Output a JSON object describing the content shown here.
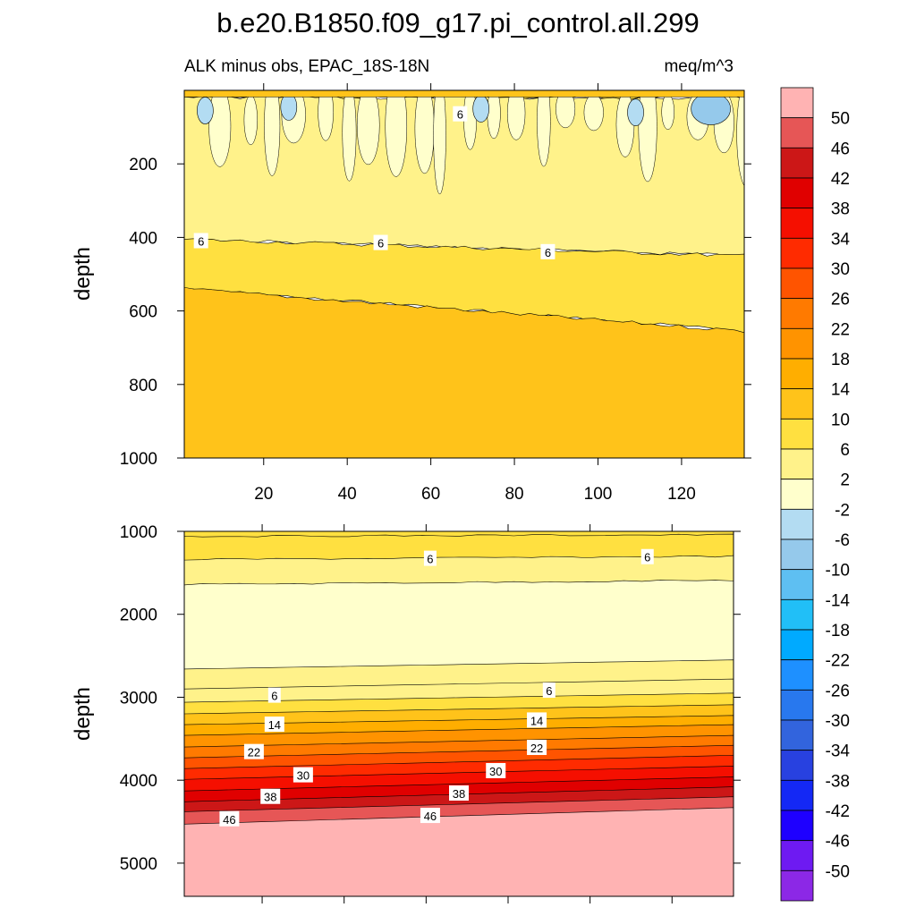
{
  "title": "b.e20.B1850.f09_g17.pi_control.all.299",
  "subtitle_left": "ALK minus obs, EPAC_18S-18N",
  "subtitle_right": "meq/m^3",
  "colorbar": {
    "boundaries": [
      -50,
      -46,
      -42,
      -38,
      -34,
      -30,
      -26,
      -22,
      -18,
      -14,
      -10,
      -6,
      -2,
      2,
      6,
      10,
      14,
      18,
      22,
      26,
      30,
      34,
      38,
      42,
      46,
      50
    ],
    "labels": [
      "50",
      "46",
      "42",
      "38",
      "34",
      "30",
      "26",
      "22",
      "18",
      "14",
      "10",
      "6",
      "2",
      "-2",
      "-6",
      "-10",
      "-14",
      "-18",
      "-22",
      "-26",
      "-30",
      "-34",
      "-38",
      "-42",
      "-46",
      "-50"
    ],
    "colors_top_to_bottom": [
      "#ffb3b3",
      "#e65656",
      "#cc1717",
      "#e00000",
      "#f50f00",
      "#ff2b00",
      "#ff5400",
      "#ff7a00",
      "#ff9300",
      "#ffae00",
      "#ffc31a",
      "#ffe040",
      "#fff28a",
      "#ffffcc",
      "#b3dcf2",
      "#95c9eb",
      "#5ebff2",
      "#21bff7",
      "#00aaff",
      "#1e90ff",
      "#2878ee",
      "#3264dd",
      "#2841e0",
      "#1428f5",
      "#1e00ff",
      "#6e1af2",
      "#8c28e6"
    ]
  },
  "chart_data": [
    {
      "type": "heatmap",
      "panel": "upper",
      "xlabel": "",
      "ylabel": "depth",
      "xlim": [
        1,
        135
      ],
      "ylim": [
        1000,
        0
      ],
      "x_ticks": [
        20,
        40,
        60,
        80,
        100,
        120
      ],
      "x_tick_labels": [
        "20",
        "40",
        "60",
        "80",
        "100",
        "120"
      ],
      "y_ticks": [
        200,
        400,
        600,
        800,
        1000
      ],
      "y_tick_labels": [
        "200",
        "400",
        "600",
        "800",
        "1000"
      ],
      "bands": [
        {
          "value_range": [
            6,
            10
          ],
          "top_depth": 0,
          "bottom_depth": 20
        },
        {
          "value_range": [
            2,
            6
          ],
          "top_depth": 20,
          "bottom_depth_at_xmin": 405,
          "bottom_depth_at_xmax": 450
        },
        {
          "value_range": [
            6,
            10
          ],
          "top_depth_at_xmin": 405,
          "top_depth_at_xmax": 450,
          "bottom_depth_at_xmin": 540,
          "bottom_depth_at_xmax": 655
        },
        {
          "value_range": [
            10,
            14
          ],
          "top_depth_at_xmin": 540,
          "top_depth_at_xmax": 655,
          "bottom_depth": 1000
        }
      ],
      "anomaly_patches": [
        {
          "x": 6,
          "depth": 55,
          "value_range": [
            -6,
            -2
          ]
        },
        {
          "x": 26,
          "depth": 45,
          "value_range": [
            -6,
            -2
          ]
        },
        {
          "x": 72,
          "depth": 50,
          "value_range": [
            -6,
            -2
          ]
        },
        {
          "x": 109,
          "depth": 60,
          "value_range": [
            -6,
            -2
          ]
        },
        {
          "x": 127,
          "depth": 50,
          "value_range": [
            -10,
            -6
          ]
        }
      ],
      "contour_labels": [
        {
          "text": "6",
          "x": 5,
          "depth": 410
        },
        {
          "text": "6",
          "x": 48,
          "depth": 415
        },
        {
          "text": "6",
          "x": 88,
          "depth": 440
        },
        {
          "text": "6",
          "x": 67,
          "depth": 65
        }
      ]
    },
    {
      "type": "heatmap",
      "panel": "lower",
      "xlabel": "",
      "ylabel": "depth",
      "xlim": [
        1,
        135
      ],
      "ylim": [
        5400,
        1000
      ],
      "y_ticks": [
        1000,
        2000,
        3000,
        4000,
        5000
      ],
      "y_tick_labels": [
        "1000",
        "2000",
        "3000",
        "4000",
        "5000"
      ],
      "contour_levels_depth": [
        {
          "level": 10,
          "depth_at_xmin": 1060,
          "depth_at_xmax": 1040
        },
        {
          "level": 6,
          "depth_at_xmin": 1340,
          "depth_at_xmax": 1300
        },
        {
          "level": 2,
          "depth_at_xmin": 1640,
          "depth_at_xmax": 1590
        },
        {
          "level": -2,
          "depth_at_xmin": 2660,
          "depth_at_xmax": 2550
        },
        {
          "level": 2,
          "depth_at_xmin": 2900,
          "depth_at_xmax": 2780
        },
        {
          "level": 6,
          "depth_at_xmin": 3060,
          "depth_at_xmax": 2950
        },
        {
          "level": 10,
          "depth_at_xmin": 3200,
          "depth_at_xmax": 3090
        },
        {
          "level": 14,
          "depth_at_xmin": 3330,
          "depth_at_xmax": 3220
        },
        {
          "level": 18,
          "depth_at_xmin": 3460,
          "depth_at_xmax": 3330
        },
        {
          "level": 22,
          "depth_at_xmin": 3600,
          "depth_at_xmax": 3460
        },
        {
          "level": 26,
          "depth_at_xmin": 3730,
          "depth_at_xmax": 3580
        },
        {
          "level": 30,
          "depth_at_xmin": 3860,
          "depth_at_xmax": 3700
        },
        {
          "level": 34,
          "depth_at_xmin": 3990,
          "depth_at_xmax": 3830
        },
        {
          "level": 38,
          "depth_at_xmin": 4130,
          "depth_at_xmax": 3960
        },
        {
          "level": 42,
          "depth_at_xmin": 4260,
          "depth_at_xmax": 4080
        },
        {
          "level": 46,
          "depth_at_xmin": 4380,
          "depth_at_xmax": 4200
        },
        {
          "level": 50,
          "depth_at_xmin": 4530,
          "depth_at_xmax": 4330
        }
      ],
      "contour_labels": [
        {
          "text": "6",
          "x": 61,
          "depth": 1330
        },
        {
          "text": "6",
          "x": 114,
          "depth": 1310
        },
        {
          "text": "6",
          "x": 23,
          "depth": 2980
        },
        {
          "text": "6",
          "x": 90,
          "depth": 2920
        },
        {
          "text": "14",
          "x": 23,
          "depth": 3330
        },
        {
          "text": "14",
          "x": 87,
          "depth": 3280
        },
        {
          "text": "22",
          "x": 18,
          "depth": 3660
        },
        {
          "text": "22",
          "x": 87,
          "depth": 3610
        },
        {
          "text": "30",
          "x": 30,
          "depth": 3940
        },
        {
          "text": "30",
          "x": 77,
          "depth": 3890
        },
        {
          "text": "38",
          "x": 22,
          "depth": 4200
        },
        {
          "text": "38",
          "x": 68,
          "depth": 4160
        },
        {
          "text": "46",
          "x": 12,
          "depth": 4470
        },
        {
          "text": "46",
          "x": 61,
          "depth": 4430
        }
      ]
    }
  ]
}
